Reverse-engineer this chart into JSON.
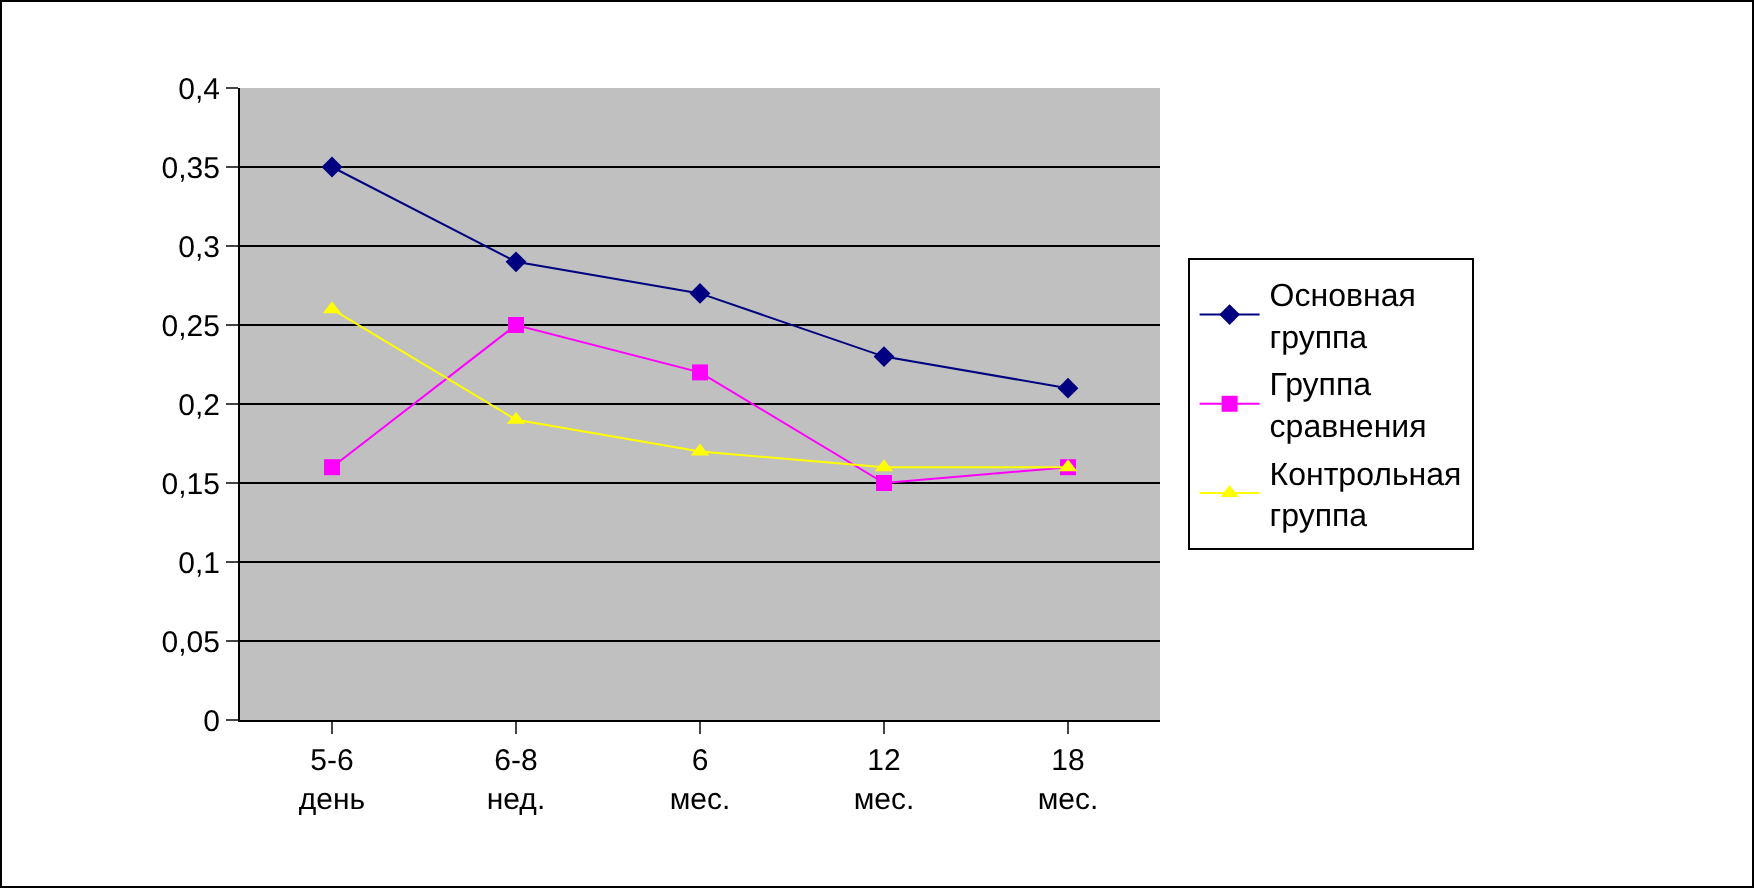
{
  "chart_data": {
    "type": "line",
    "categories": [
      "5-6 день",
      "6-8 нед.",
      "6 мес.",
      "12 мес.",
      "18 мес."
    ],
    "series": [
      {
        "name": "Основная группа",
        "color": "#000080",
        "marker": "diamond",
        "values": [
          0.35,
          0.29,
          0.27,
          0.23,
          0.21
        ]
      },
      {
        "name": "Группа сравнения",
        "color": "#ff00ff",
        "marker": "square",
        "values": [
          0.16,
          0.25,
          0.22,
          0.15,
          0.16
        ]
      },
      {
        "name": "Контрольная группа",
        "color": "#ffff00",
        "marker": "triangle",
        "values": [
          0.26,
          0.19,
          0.17,
          0.16,
          0.16
        ]
      }
    ],
    "ylim": [
      0,
      0.4
    ],
    "yticks": [
      {
        "value": 0,
        "label": "0"
      },
      {
        "value": 0.05,
        "label": "0,05"
      },
      {
        "value": 0.1,
        "label": "0,1"
      },
      {
        "value": 0.15,
        "label": "0,15"
      },
      {
        "value": 0.2,
        "label": "0,2"
      },
      {
        "value": 0.25,
        "label": "0,25"
      },
      {
        "value": 0.3,
        "label": "0,3"
      },
      {
        "value": 0.35,
        "label": "0,35"
      },
      {
        "value": 0.4,
        "label": "0,4"
      }
    ],
    "grid": "y",
    "legend": "right"
  }
}
